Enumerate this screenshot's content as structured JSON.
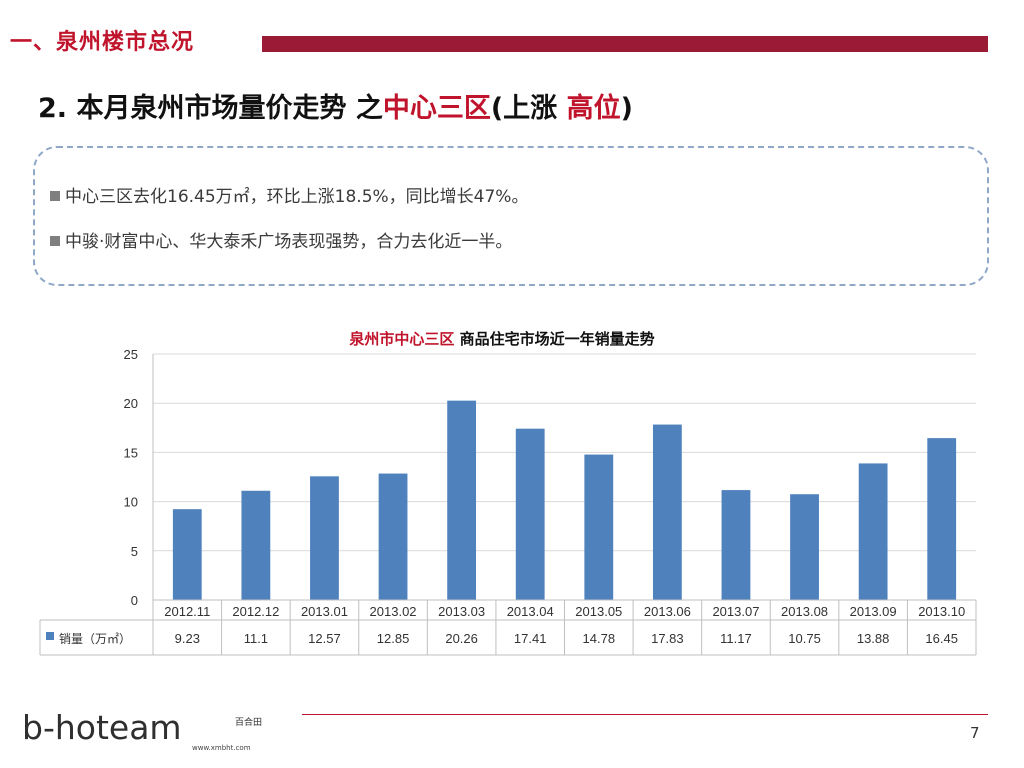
{
  "header": {
    "section_title": "一、泉州楼市总况",
    "heading_prefix": "2. 本月泉州市场量价走势 之",
    "heading_red1": "中心三区",
    "heading_mid": "(上涨 ",
    "heading_red2": "高位",
    "heading_suffix": ")"
  },
  "bullets": [
    "中心三区去化16.45万㎡，环比上涨18.5%，同比增长47%。",
    "中骏·财富中心、华大泰禾广场表现强势，合力去化近一半。"
  ],
  "chart_data": {
    "type": "bar",
    "title_red": "泉州市中心三区",
    "title_rest": " 商品住宅市场近一年销量走势",
    "categories": [
      "2012.11",
      "2012.12",
      "2013.01",
      "2013.02",
      "2013.03",
      "2013.04",
      "2013.05",
      "2013.06",
      "2013.07",
      "2013.08",
      "2013.09",
      "2013.10"
    ],
    "series": [
      {
        "name": "销量（万㎡）",
        "values": [
          9.23,
          11.1,
          12.57,
          12.85,
          20.26,
          17.41,
          14.78,
          17.83,
          11.17,
          10.75,
          13.88,
          16.45
        ],
        "color": "#4f81bd"
      }
    ],
    "ylim": [
      0,
      25
    ],
    "yticks": [
      0,
      5,
      10,
      15,
      20,
      25
    ],
    "grid": true,
    "legend": "data-table"
  },
  "footer": {
    "logo_text": "b-hoteam",
    "logo_cn": "百合田",
    "logo_url": "www.xmbht.com",
    "page_number": "7"
  },
  "colors": {
    "brand_red": "#c0142c",
    "bar_dark_red": "#9b1b36",
    "bar_blue": "#4f81bd",
    "box_border": "#8fa8c8"
  }
}
